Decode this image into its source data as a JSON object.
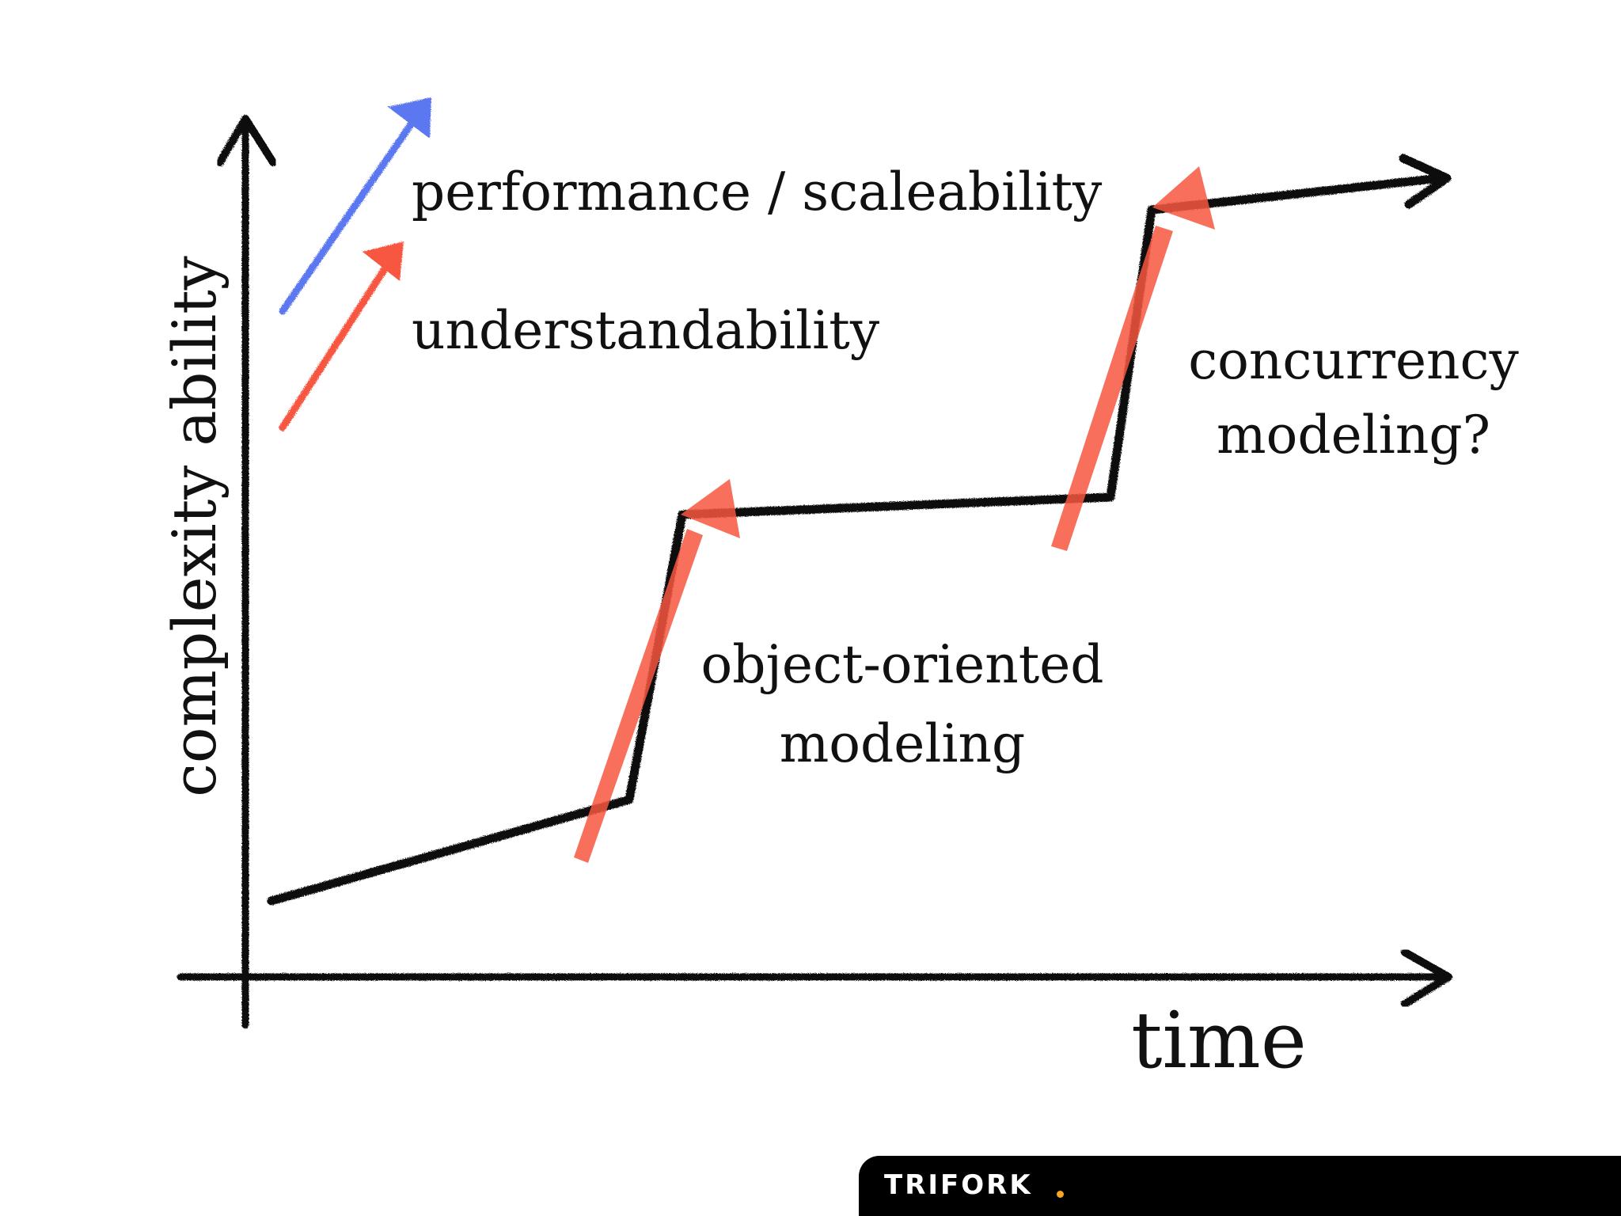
{
  "labels": {
    "y_axis": "complexity ability",
    "x_axis": "time",
    "legend_performance": "performance / scaleability",
    "legend_understandability": "understandability",
    "step1": [
      "object-oriented",
      "modeling"
    ],
    "step2": [
      "concurrency",
      "modeling?"
    ]
  },
  "brand": {
    "name": "TRIFORK",
    "dot_color": "#f5a623"
  },
  "colors": {
    "line": "#111111",
    "performance_arrow": "#5c78f0",
    "understandability_arrow": "#f7573f"
  }
}
